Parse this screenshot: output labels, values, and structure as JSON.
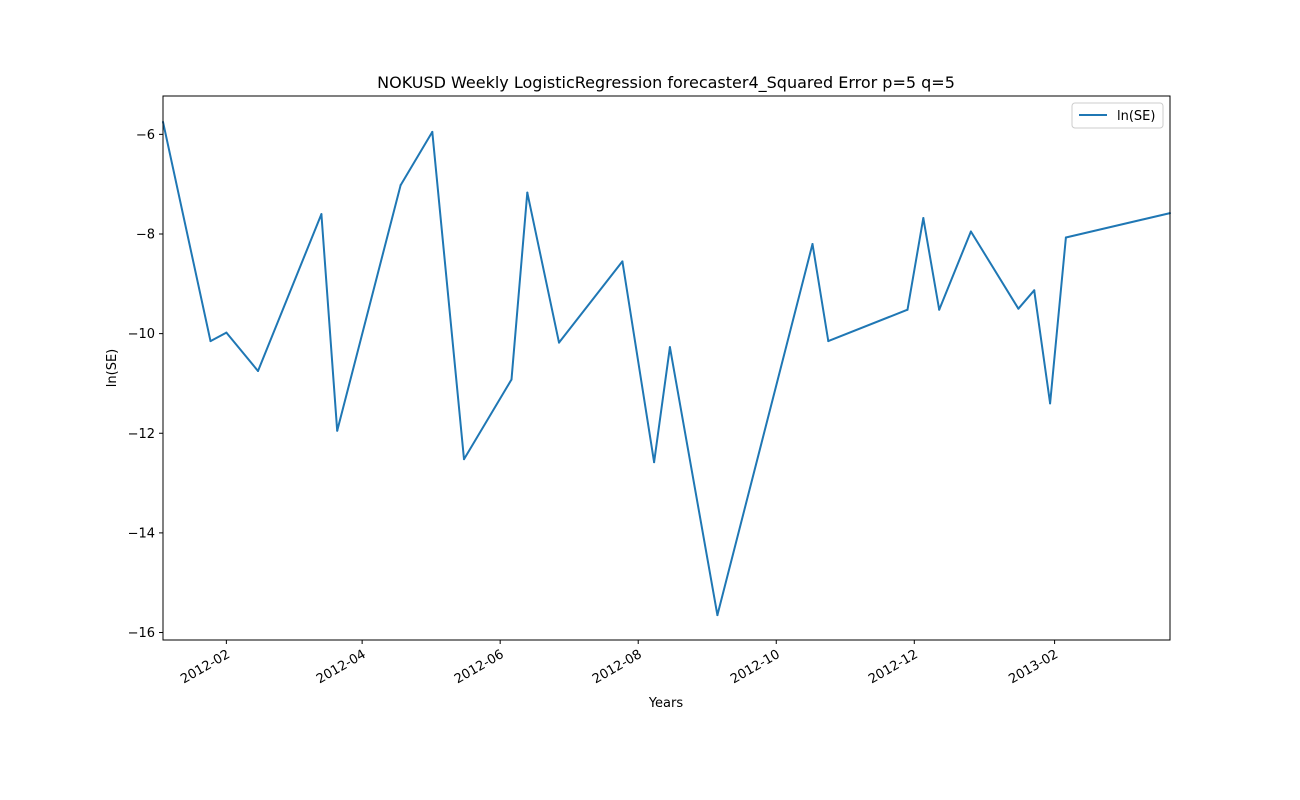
{
  "chart_data": {
    "type": "line",
    "title": "NOKUSD Weekly LogisticRegression forecaster4_Squared Error p=5 q=5",
    "xlabel": "Years",
    "ylabel": "ln(SE)",
    "x_tick_labels": [
      "2012-02",
      "2012-04",
      "2012-06",
      "2012-08",
      "2012-10",
      "2012-12",
      "2013-02"
    ],
    "x_tick_dates": [
      "2012-02-01",
      "2012-04-01",
      "2012-06-01",
      "2012-08-01",
      "2012-10-01",
      "2012-12-01",
      "2013-02-01"
    ],
    "y_ticks": [
      -16,
      -14,
      -12,
      -10,
      -8,
      -6
    ],
    "y_tick_labels": [
      "−16",
      "−14",
      "−12",
      "−10",
      "−8",
      "−6"
    ],
    "xlim": [
      "2012-01-04",
      "2013-03-24"
    ],
    "ylim": [
      -16.15,
      -5.23
    ],
    "grid": false,
    "legend_position": "top-right",
    "colors": {
      "series": "#1f77b4"
    },
    "series": [
      {
        "name": "ln(SE)",
        "points": [
          {
            "x": "2012-01-04",
            "y": -5.75
          },
          {
            "x": "2012-01-25",
            "y": -10.15
          },
          {
            "x": "2012-02-01",
            "y": -9.98
          },
          {
            "x": "2012-02-15",
            "y": -10.75
          },
          {
            "x": "2012-03-14",
            "y": -7.6
          },
          {
            "x": "2012-03-21",
            "y": -11.95
          },
          {
            "x": "2012-04-18",
            "y": -7.02
          },
          {
            "x": "2012-05-02",
            "y": -5.95
          },
          {
            "x": "2012-05-16",
            "y": -12.52
          },
          {
            "x": "2012-06-06",
            "y": -10.92
          },
          {
            "x": "2012-06-13",
            "y": -7.17
          },
          {
            "x": "2012-06-27",
            "y": -10.18
          },
          {
            "x": "2012-07-25",
            "y": -8.55
          },
          {
            "x": "2012-08-08",
            "y": -12.58
          },
          {
            "x": "2012-08-15",
            "y": -10.27
          },
          {
            "x": "2012-09-05",
            "y": -15.65
          },
          {
            "x": "2012-10-17",
            "y": -8.2
          },
          {
            "x": "2012-10-24",
            "y": -10.15
          },
          {
            "x": "2012-11-28",
            "y": -9.52
          },
          {
            "x": "2012-12-05",
            "y": -7.68
          },
          {
            "x": "2012-12-12",
            "y": -9.52
          },
          {
            "x": "2012-12-26",
            "y": -7.95
          },
          {
            "x": "2013-01-16",
            "y": -9.5
          },
          {
            "x": "2013-01-23",
            "y": -9.13
          },
          {
            "x": "2013-01-30",
            "y": -11.4
          },
          {
            "x": "2013-02-06",
            "y": -8.07
          },
          {
            "x": "2013-03-24",
            "y": -7.58
          }
        ]
      }
    ]
  }
}
